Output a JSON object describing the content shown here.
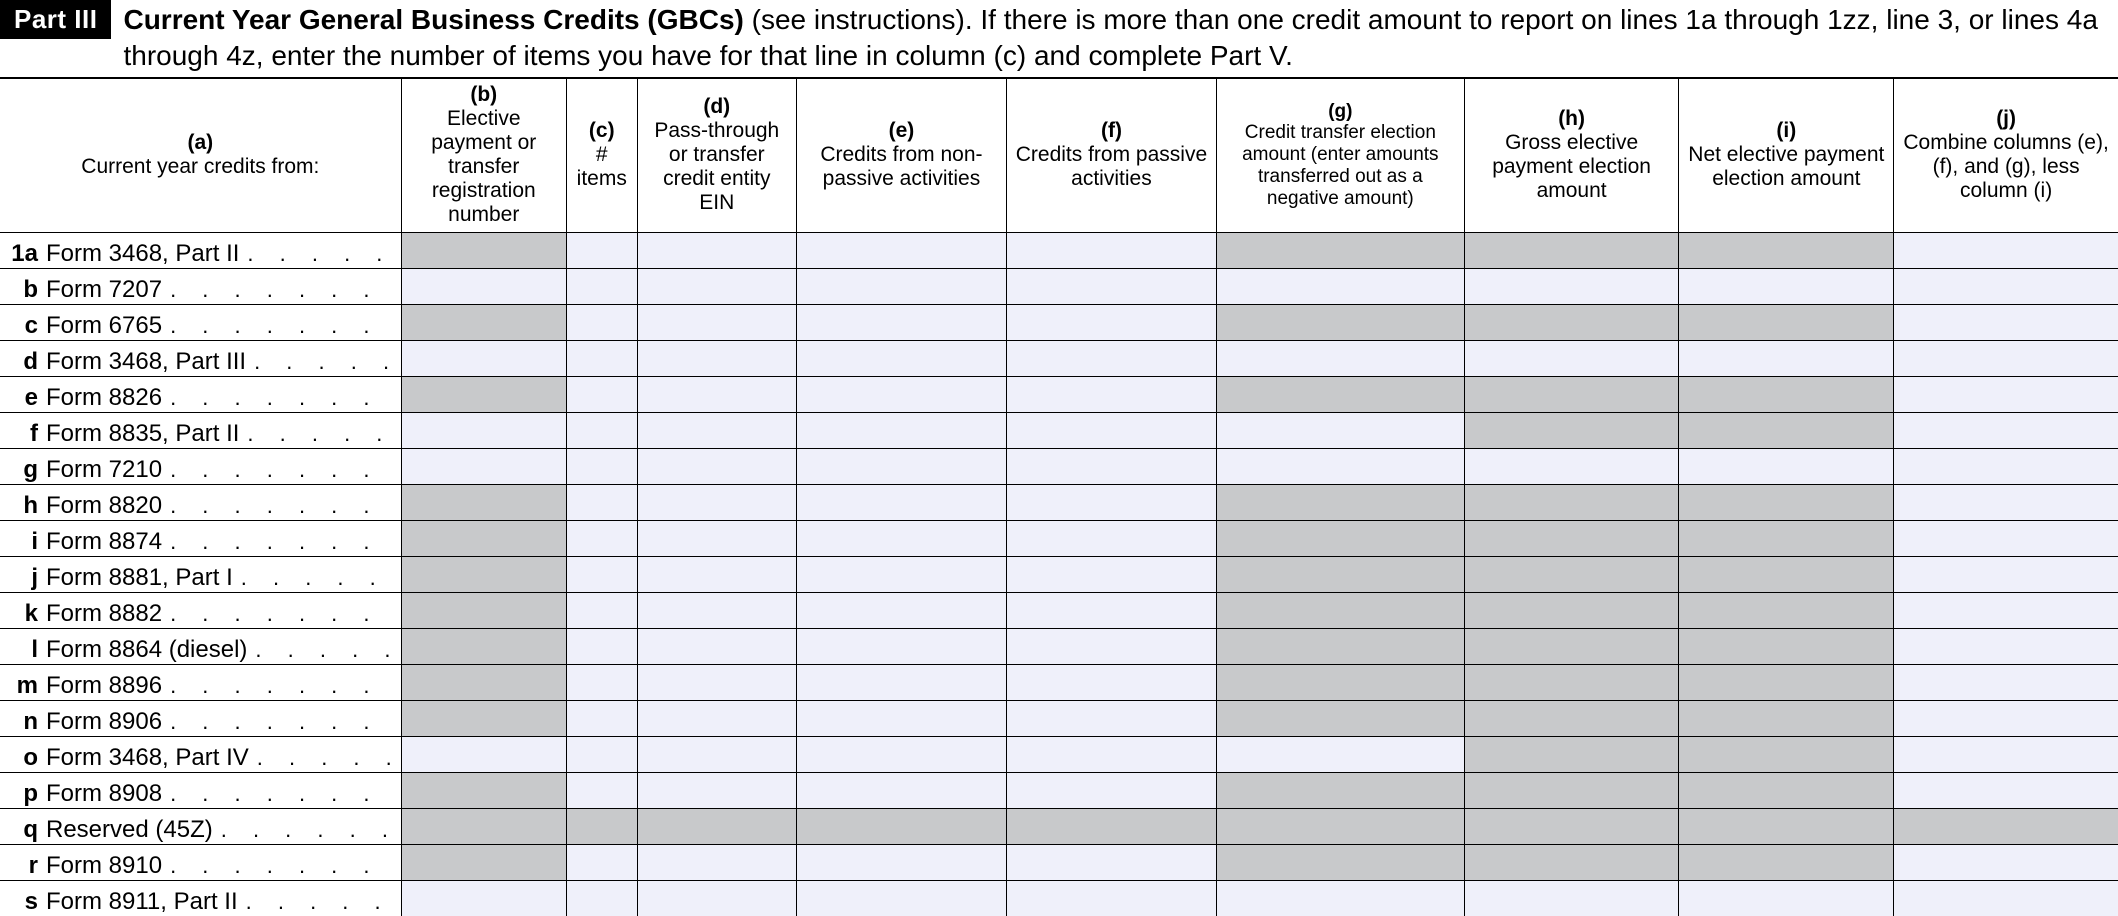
{
  "header": {
    "part_label": "Part III",
    "title": "Current Year General Business Credits (GBCs)",
    "subtitle": " (see instructions). If there is more than one credit amount to report on lines 1a through 1zz, line 3, or lines 4a through 4z, enter the number of items you have for that line in column (c) and complete Part V."
  },
  "columns": {
    "a": {
      "letter": "(a)",
      "text": "Current year credits from:"
    },
    "b": {
      "letter": "(b)",
      "text": "Elective payment or transfer registration number"
    },
    "c": {
      "letter": "(c)",
      "text": "# items"
    },
    "d": {
      "letter": "(d)",
      "text": "Pass-through or transfer credit entity EIN"
    },
    "e": {
      "letter": "(e)",
      "text": "Credits from non-passive activities"
    },
    "f": {
      "letter": "(f)",
      "text": "Credits from passive activities"
    },
    "g": {
      "letter": "(g)",
      "text": "Credit transfer election amount (enter amounts transferred out as a negative amount)"
    },
    "h": {
      "letter": "(h)",
      "text": "Gross elective payment election amount"
    },
    "i": {
      "letter": "(i)",
      "text": "Net elective payment election amount"
    },
    "j": {
      "letter": "(j)",
      "text": "Combine columns (e), (f), and (g), less column (i)"
    }
  },
  "rows": [
    {
      "id": "1a",
      "label": "Form 3468, Part II",
      "shade": {
        "b": true,
        "g": true,
        "h": true,
        "i": true
      }
    },
    {
      "id": "b",
      "label": "Form 7207",
      "shade": {}
    },
    {
      "id": "c",
      "label": "Form 6765",
      "shade": {
        "b": true,
        "g": true,
        "h": true,
        "i": true
      }
    },
    {
      "id": "d",
      "label": "Form 3468, Part III",
      "shade": {}
    },
    {
      "id": "e",
      "label": "Form 8826",
      "shade": {
        "b": true,
        "g": true,
        "h": true,
        "i": true
      }
    },
    {
      "id": "f",
      "label": "Form 8835, Part II",
      "shade": {
        "h": true,
        "i": true
      }
    },
    {
      "id": "g",
      "label": "Form 7210",
      "shade": {}
    },
    {
      "id": "h",
      "label": "Form 8820",
      "shade": {
        "b": true,
        "g": true,
        "h": true,
        "i": true
      }
    },
    {
      "id": "i",
      "label": "Form 8874",
      "shade": {
        "b": true,
        "g": true,
        "h": true,
        "i": true
      }
    },
    {
      "id": "j",
      "label": "Form 8881, Part I",
      "shade": {
        "b": true,
        "g": true,
        "h": true,
        "i": true
      }
    },
    {
      "id": "k",
      "label": "Form 8882",
      "shade": {
        "b": true,
        "g": true,
        "h": true,
        "i": true
      }
    },
    {
      "id": "l",
      "label": "Form 8864 (diesel)",
      "shade": {
        "b": true,
        "g": true,
        "h": true,
        "i": true
      }
    },
    {
      "id": "m",
      "label": "Form 8896",
      "shade": {
        "b": true,
        "g": true,
        "h": true,
        "i": true
      }
    },
    {
      "id": "n",
      "label": "Form 8906",
      "shade": {
        "b": true,
        "g": true,
        "h": true,
        "i": true
      }
    },
    {
      "id": "o",
      "label": "Form 3468, Part IV",
      "shade": {
        "h": true,
        "i": true
      }
    },
    {
      "id": "p",
      "label": "Form 8908",
      "shade": {
        "b": true,
        "g": true,
        "h": true,
        "i": true
      }
    },
    {
      "id": "q",
      "label": "Reserved (45Z)",
      "shade": {
        "b": true,
        "c": true,
        "d": true,
        "e": true,
        "f": true,
        "g": true,
        "h": true,
        "i": true,
        "j": true
      }
    },
    {
      "id": "r",
      "label": "Form 8910",
      "shade": {
        "b": true,
        "g": true,
        "h": true,
        "i": true
      }
    },
    {
      "id": "s",
      "label": "Form 8911, Part II",
      "shade": {}
    }
  ],
  "colors": {
    "shaded": "#c8c9cb",
    "light": "#eff0fa"
  }
}
